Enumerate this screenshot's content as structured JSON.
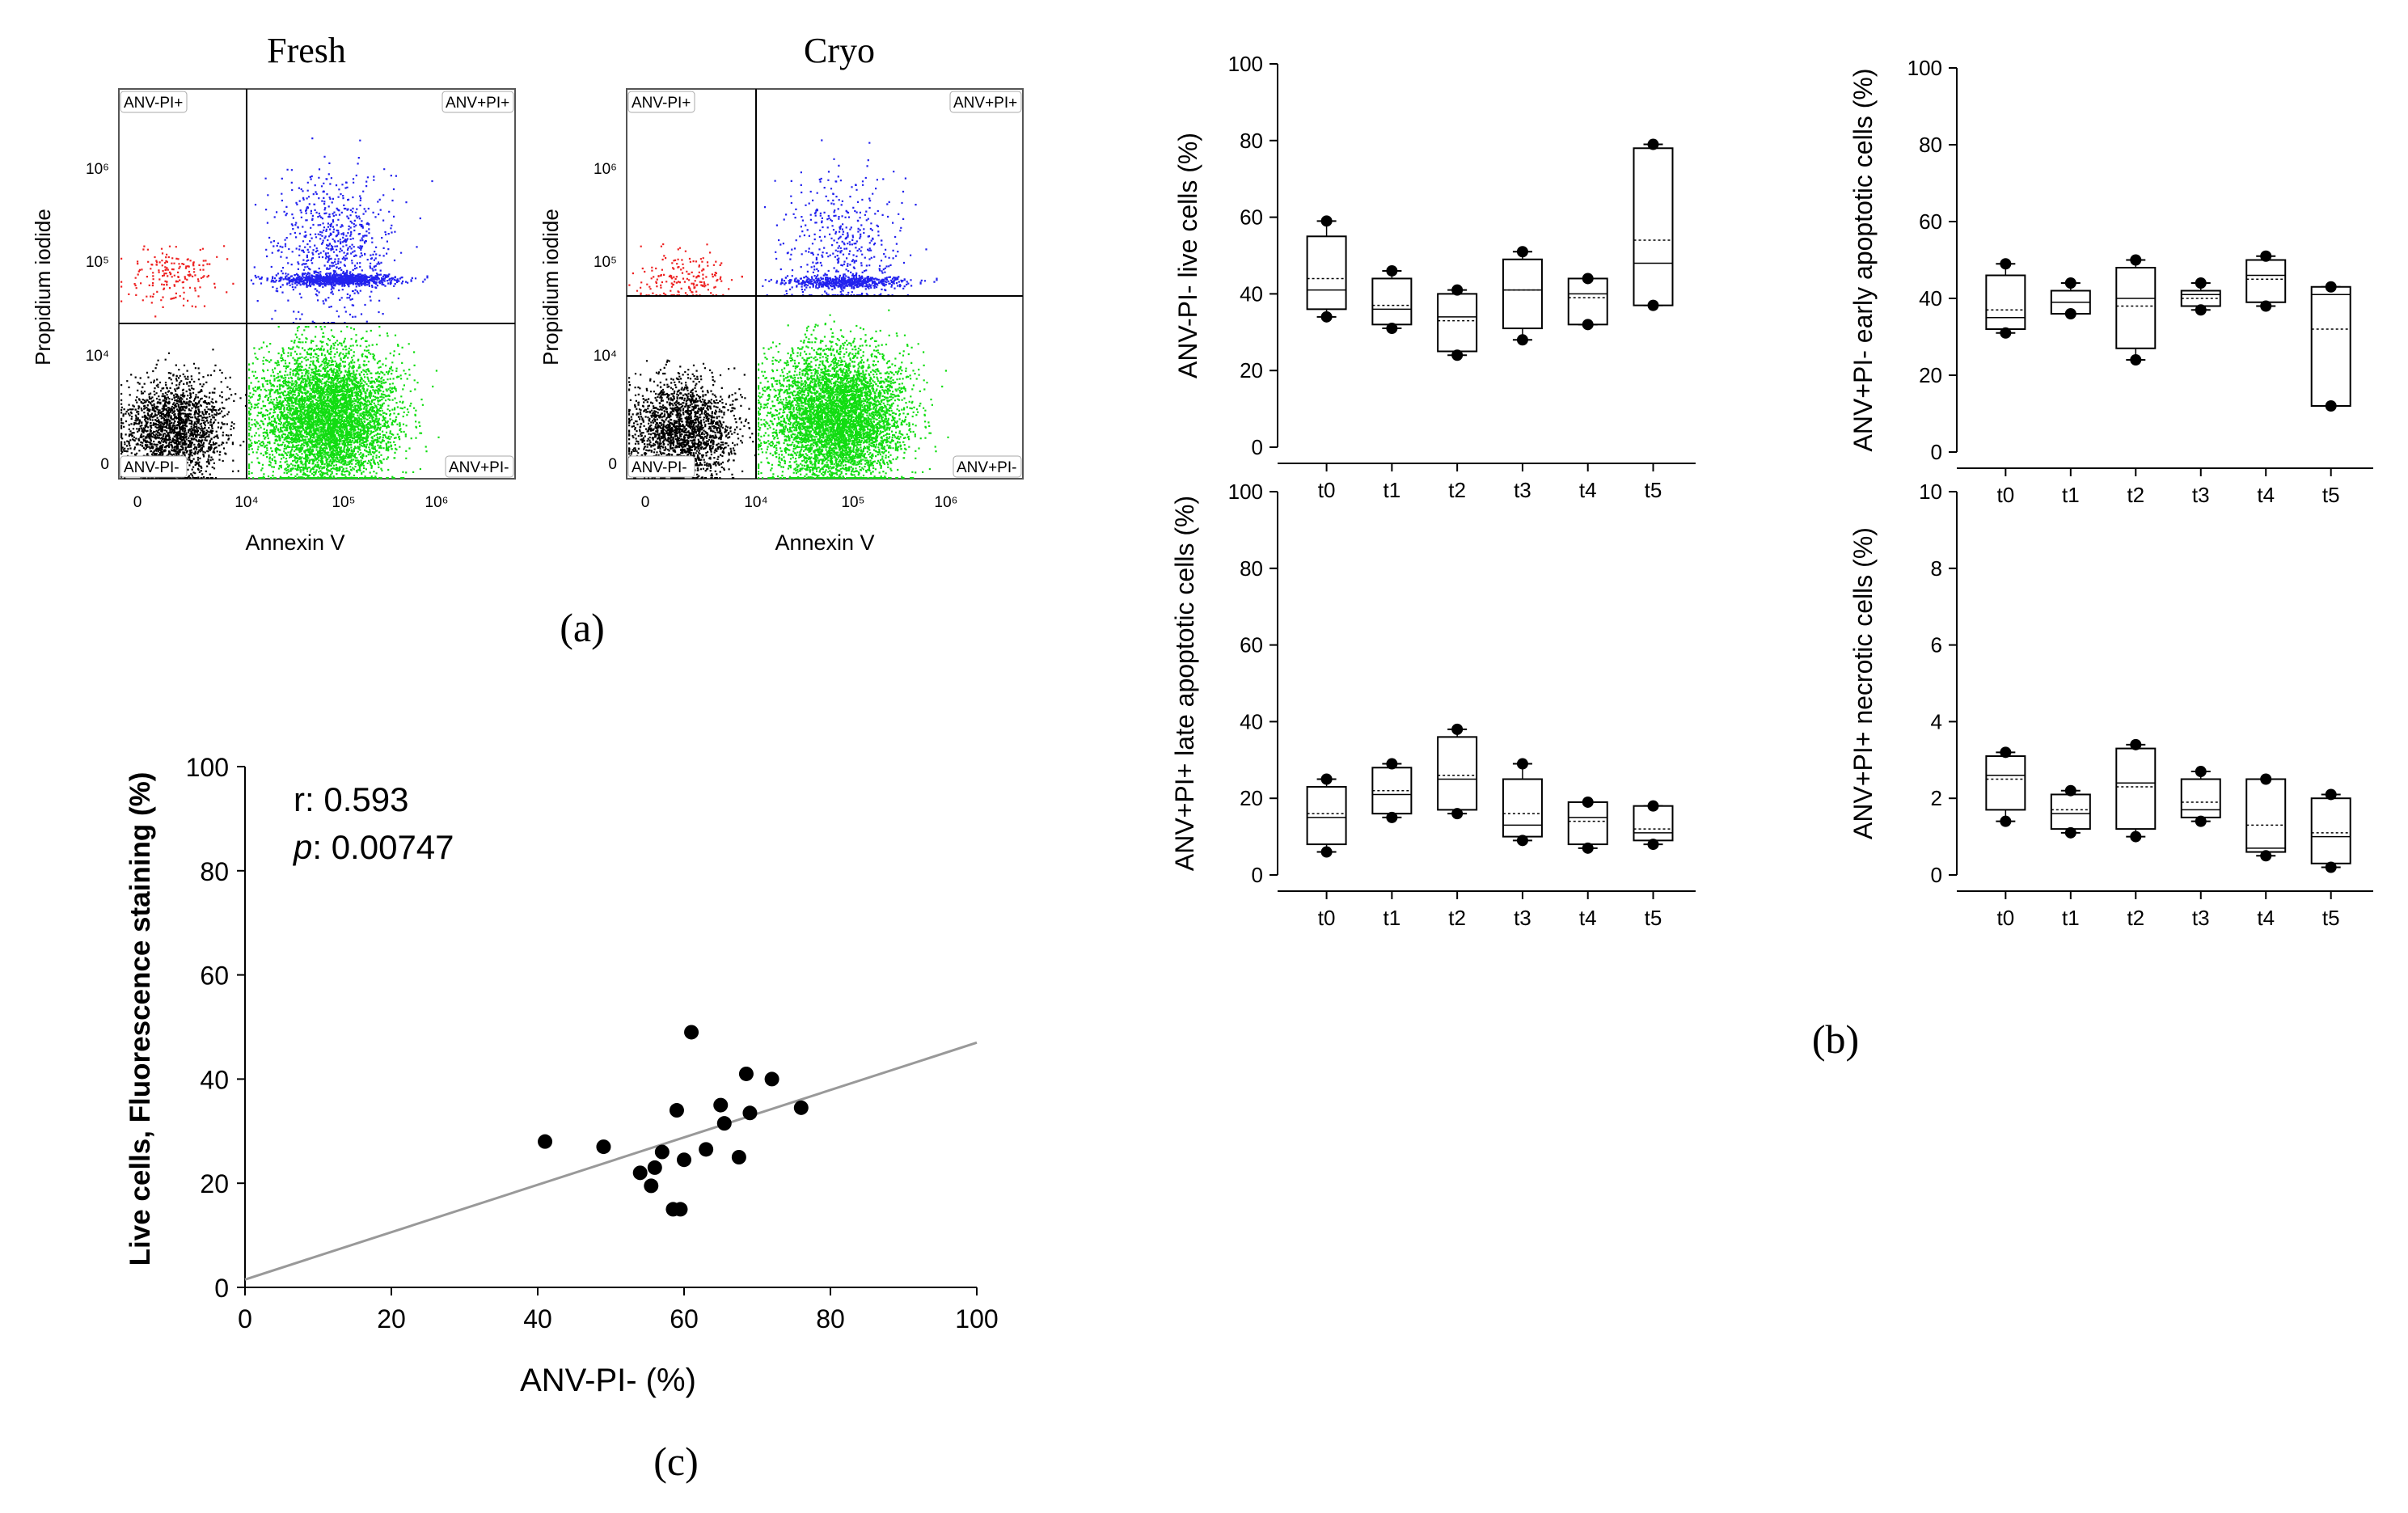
{
  "flow": {
    "xlabel": "Annexin V",
    "ylabel": "Propidium iodide",
    "yticks": [
      "10⁶",
      "10⁵",
      "10⁴",
      "0"
    ],
    "xticks": [
      "0",
      "10⁴",
      "10⁵",
      "10⁶"
    ],
    "quadrants": {
      "ul": "ANV-PI+",
      "ur": "ANV+PI+",
      "ll": "ANV-PI-",
      "lr": "ANV+PI-"
    },
    "colors": {
      "ul": "#ee2222",
      "ur": "#2222ee",
      "ll": "#000000",
      "lr": "#11dd11"
    },
    "panel_label": "(a)"
  },
  "panel_b_label": "(b)",
  "panel_c_label": "(c)",
  "chart_data": [
    {
      "type": "scatter",
      "title": "Fresh",
      "xlabel": "Annexin V",
      "ylabel": "Propidium iodide",
      "quadrant_fractions": {
        "ANV-PI+": 0.02,
        "ANV+PI+": 0.17,
        "ANV-PI-": 0.22,
        "ANV+PI-": 0.59
      }
    },
    {
      "type": "scatter",
      "title": "Cryo",
      "xlabel": "Annexin V",
      "ylabel": "Propidium iodide",
      "quadrant_fractions": {
        "ANV-PI+": 0.02,
        "ANV+PI+": 0.11,
        "ANV-PI-": 0.22,
        "ANV+PI-": 0.65
      }
    },
    {
      "type": "box",
      "title": "",
      "ylabel": "ANV-PI- live cells (%)",
      "ylim": [
        0,
        100
      ],
      "yticks": [
        0,
        20,
        40,
        60,
        80,
        100
      ],
      "categories": [
        "t0",
        "t1",
        "t2",
        "t3",
        "t4",
        "t5"
      ],
      "boxes": [
        {
          "min": 34,
          "q1": 36,
          "median": 41,
          "mean": 44,
          "q3": 55,
          "max": 59
        },
        {
          "min": 31,
          "q1": 32,
          "median": 36,
          "mean": 37,
          "q3": 44,
          "max": 46
        },
        {
          "min": 24,
          "q1": 25,
          "median": 34,
          "mean": 33,
          "q3": 40,
          "max": 41
        },
        {
          "min": 28,
          "q1": 31,
          "median": 41,
          "mean": 41,
          "q3": 49,
          "max": 51
        },
        {
          "min": 32,
          "q1": 32,
          "median": 40,
          "mean": 39,
          "q3": 44,
          "max": 44
        },
        {
          "min": 37,
          "q1": 37,
          "median": 48,
          "mean": 54,
          "q3": 78,
          "max": 79
        }
      ]
    },
    {
      "type": "box",
      "title": "",
      "ylabel": "ANV+PI- early apoptotic cells (%)",
      "ylim": [
        0,
        100
      ],
      "yticks": [
        0,
        20,
        40,
        60,
        80,
        100
      ],
      "categories": [
        "t0",
        "t1",
        "t2",
        "t3",
        "t4",
        "t5"
      ],
      "boxes": [
        {
          "min": 31,
          "q1": 32,
          "median": 35,
          "mean": 37,
          "q3": 46,
          "max": 49
        },
        {
          "min": 36,
          "q1": 36,
          "median": 39,
          "mean": 39,
          "q3": 42,
          "max": 44
        },
        {
          "min": 24,
          "q1": 27,
          "median": 40,
          "mean": 38,
          "q3": 48,
          "max": 50
        },
        {
          "min": 37,
          "q1": 38,
          "median": 41,
          "mean": 40,
          "q3": 42,
          "max": 44
        },
        {
          "min": 38,
          "q1": 39,
          "median": 46,
          "mean": 45,
          "q3": 50,
          "max": 51
        },
        {
          "min": 12,
          "q1": 12,
          "median": 41,
          "mean": 32,
          "q3": 43,
          "max": 43
        }
      ]
    },
    {
      "type": "box",
      "title": "",
      "ylabel": "ANV+PI+ late apoptotic cells (%)",
      "ylim": [
        0,
        100
      ],
      "yticks": [
        0,
        20,
        40,
        60,
        80,
        100
      ],
      "categories": [
        "t0",
        "t1",
        "t2",
        "t3",
        "t4",
        "t5"
      ],
      "boxes": [
        {
          "min": 6,
          "q1": 8,
          "median": 15,
          "mean": 16,
          "q3": 23,
          "max": 25
        },
        {
          "min": 15,
          "q1": 16,
          "median": 21,
          "mean": 22,
          "q3": 28,
          "max": 29
        },
        {
          "min": 16,
          "q1": 17,
          "median": 25,
          "mean": 26,
          "q3": 36,
          "max": 38
        },
        {
          "min": 9,
          "q1": 10,
          "median": 13,
          "mean": 16,
          "q3": 25,
          "max": 29
        },
        {
          "min": 7,
          "q1": 8,
          "median": 15,
          "mean": 14,
          "q3": 19,
          "max": 19
        },
        {
          "min": 8,
          "q1": 9,
          "median": 11,
          "mean": 12,
          "q3": 18,
          "max": 18
        }
      ]
    },
    {
      "type": "box",
      "title": "",
      "ylabel": "ANV+PI+ necrotic cells (%)",
      "ylim": [
        0,
        10
      ],
      "yticks": [
        0,
        2,
        4,
        6,
        8,
        10
      ],
      "categories": [
        "t0",
        "t1",
        "t2",
        "t3",
        "t4",
        "t5"
      ],
      "boxes": [
        {
          "min": 1.4,
          "q1": 1.7,
          "median": 2.6,
          "mean": 2.5,
          "q3": 3.1,
          "max": 3.2
        },
        {
          "min": 1.1,
          "q1": 1.2,
          "median": 1.6,
          "mean": 1.7,
          "q3": 2.1,
          "max": 2.2
        },
        {
          "min": 1.0,
          "q1": 1.2,
          "median": 2.4,
          "mean": 2.3,
          "q3": 3.3,
          "max": 3.4
        },
        {
          "min": 1.4,
          "q1": 1.5,
          "median": 1.7,
          "mean": 1.9,
          "q3": 2.5,
          "max": 2.7
        },
        {
          "min": 0.5,
          "q1": 0.6,
          "median": 0.7,
          "mean": 1.3,
          "q3": 2.5,
          "max": 2.5
        },
        {
          "min": 0.2,
          "q1": 0.3,
          "median": 1.0,
          "mean": 1.1,
          "q3": 2.0,
          "max": 2.1
        }
      ]
    },
    {
      "type": "scatter",
      "title": "",
      "xlabel": "ANV-PI- (%)",
      "ylabel": "Live cells, Fluorescence staining (%)",
      "xlim": [
        0,
        100
      ],
      "ylim": [
        0,
        100
      ],
      "xticks": [
        0,
        20,
        40,
        60,
        80,
        100
      ],
      "yticks": [
        0,
        20,
        40,
        60,
        80,
        100
      ],
      "annotations": {
        "r_label": "r",
        "r_value": ": 0.593",
        "p_label": "p",
        "p_value": ": 0.00747"
      },
      "points": [
        [
          41,
          28
        ],
        [
          49,
          27
        ],
        [
          54,
          22
        ],
        [
          55.5,
          19.5
        ],
        [
          56,
          23
        ],
        [
          57,
          26
        ],
        [
          58.5,
          15
        ],
        [
          59,
          34
        ],
        [
          59.5,
          15
        ],
        [
          60,
          24.5
        ],
        [
          61,
          49
        ],
        [
          63,
          26.5
        ],
        [
          65,
          35
        ],
        [
          65.5,
          31.5
        ],
        [
          67.5,
          25
        ],
        [
          68.5,
          41
        ],
        [
          69,
          33.5
        ],
        [
          72,
          40
        ],
        [
          76,
          34.5
        ]
      ],
      "fit_line": {
        "slope": 0.455,
        "intercept": 1.5
      }
    }
  ]
}
